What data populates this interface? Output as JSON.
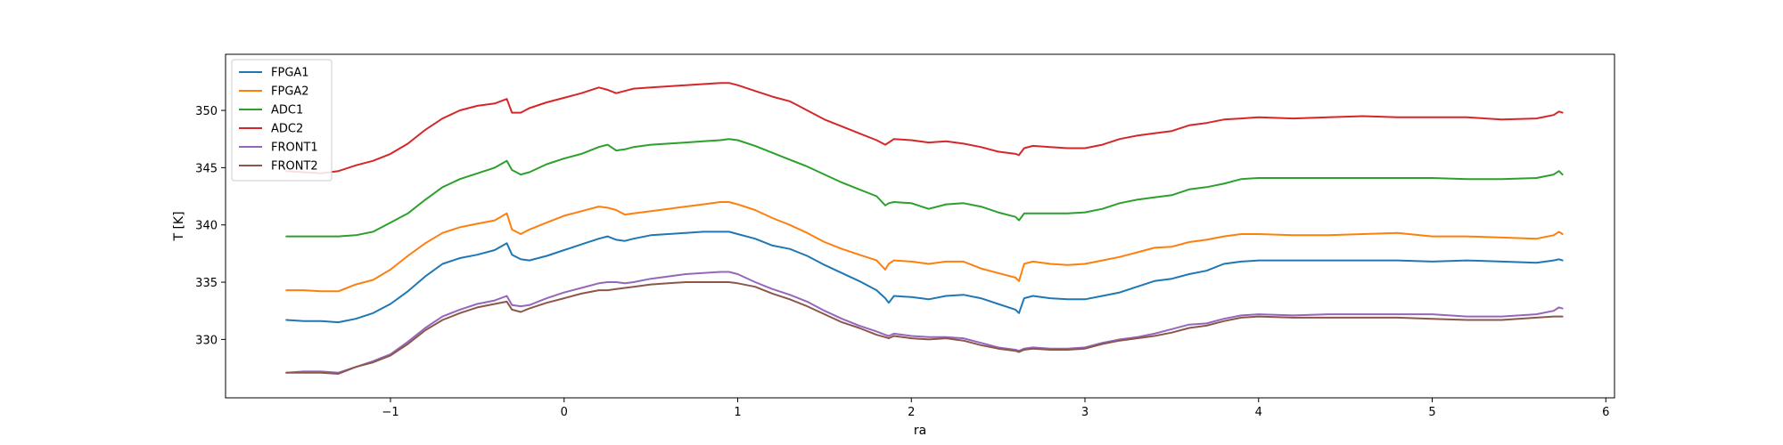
{
  "chart_data": {
    "type": "line",
    "title": "",
    "xlabel": "ra",
    "ylabel": "T [K]",
    "xlim": [
      -1.95,
      6.05
    ],
    "ylim": [
      324.9,
      354.9
    ],
    "xticks": [
      -1,
      0,
      1,
      2,
      3,
      4,
      5,
      6
    ],
    "xtick_labels": [
      "−1",
      "0",
      "1",
      "2",
      "3",
      "4",
      "5",
      "6"
    ],
    "yticks": [
      330,
      335,
      340,
      345,
      350
    ],
    "ytick_labels": [
      "330",
      "335",
      "340",
      "345",
      "350"
    ],
    "grid": false,
    "legend": {
      "placement": "top-left"
    },
    "x": [
      -1.6,
      -1.5,
      -1.4,
      -1.3,
      -1.2,
      -1.1,
      -1.0,
      -0.9,
      -0.8,
      -0.7,
      -0.6,
      -0.5,
      -0.4,
      -0.33,
      -0.3,
      -0.25,
      -0.2,
      -0.1,
      0.0,
      0.1,
      0.2,
      0.25,
      0.3,
      0.35,
      0.4,
      0.5,
      0.6,
      0.7,
      0.8,
      0.9,
      0.95,
      1.0,
      1.1,
      1.2,
      1.3,
      1.4,
      1.5,
      1.6,
      1.7,
      1.8,
      1.85,
      1.87,
      1.9,
      2.0,
      2.1,
      2.2,
      2.3,
      2.4,
      2.5,
      2.6,
      2.62,
      2.65,
      2.7,
      2.8,
      2.9,
      3.0,
      3.1,
      3.2,
      3.3,
      3.4,
      3.5,
      3.6,
      3.7,
      3.8,
      3.9,
      4.0,
      4.2,
      4.4,
      4.6,
      4.8,
      5.0,
      5.2,
      5.4,
      5.6,
      5.7,
      5.73,
      5.75
    ],
    "series": [
      {
        "name": "FPGA1",
        "color": "#1f77b4",
        "values": [
          331.7,
          331.6,
          331.6,
          331.5,
          331.8,
          332.3,
          333.1,
          334.2,
          335.5,
          336.6,
          337.1,
          337.4,
          337.8,
          338.4,
          337.4,
          337.0,
          336.9,
          337.3,
          337.8,
          338.3,
          338.8,
          339.0,
          338.7,
          338.6,
          338.8,
          339.1,
          339.2,
          339.3,
          339.4,
          339.4,
          339.4,
          339.2,
          338.8,
          338.2,
          337.9,
          337.3,
          336.5,
          335.8,
          335.1,
          334.3,
          333.6,
          333.2,
          333.8,
          333.7,
          333.5,
          333.8,
          333.9,
          333.6,
          333.1,
          332.6,
          332.3,
          333.6,
          333.8,
          333.6,
          333.5,
          333.5,
          333.8,
          334.1,
          334.6,
          335.1,
          335.3,
          335.7,
          336.0,
          336.6,
          336.8,
          336.9,
          336.9,
          336.9,
          336.9,
          336.9,
          336.8,
          336.9,
          336.8,
          336.7,
          336.9,
          337.0,
          336.9
        ]
      },
      {
        "name": "FPGA2",
        "color": "#ff7f0e",
        "values": [
          334.3,
          334.3,
          334.2,
          334.2,
          334.8,
          335.2,
          336.1,
          337.3,
          338.4,
          339.3,
          339.8,
          340.1,
          340.4,
          341.0,
          339.6,
          339.2,
          339.6,
          340.2,
          340.8,
          341.2,
          341.6,
          341.5,
          341.3,
          340.9,
          341.0,
          341.2,
          341.4,
          341.6,
          341.8,
          342.0,
          342.0,
          341.8,
          341.3,
          340.6,
          340.0,
          339.3,
          338.5,
          337.9,
          337.4,
          336.9,
          336.1,
          336.6,
          336.9,
          336.8,
          336.6,
          336.8,
          336.8,
          336.2,
          335.8,
          335.4,
          335.1,
          336.6,
          336.8,
          336.6,
          336.5,
          336.6,
          336.9,
          337.2,
          337.6,
          338.0,
          338.1,
          338.5,
          338.7,
          339.0,
          339.2,
          339.2,
          339.1,
          339.1,
          339.2,
          339.3,
          339.0,
          339.0,
          338.9,
          338.8,
          339.1,
          339.4,
          339.2
        ]
      },
      {
        "name": "ADC1",
        "color": "#2ca02c",
        "values": [
          339.0,
          339.0,
          339.0,
          339.0,
          339.1,
          339.4,
          340.2,
          341.0,
          342.2,
          343.3,
          344.0,
          344.5,
          345.0,
          345.6,
          344.8,
          344.4,
          344.6,
          345.3,
          345.8,
          346.2,
          346.8,
          347.0,
          346.5,
          346.6,
          346.8,
          347.0,
          347.1,
          347.2,
          347.3,
          347.4,
          347.5,
          347.4,
          346.9,
          346.3,
          345.7,
          345.1,
          344.4,
          343.7,
          343.1,
          342.5,
          341.7,
          341.9,
          342.0,
          341.9,
          341.4,
          341.8,
          341.9,
          341.6,
          341.1,
          340.7,
          340.4,
          341.0,
          341.0,
          341.0,
          341.0,
          341.1,
          341.4,
          341.9,
          342.2,
          342.4,
          342.6,
          343.1,
          343.3,
          343.6,
          344.0,
          344.1,
          344.1,
          344.1,
          344.1,
          344.1,
          344.1,
          344.0,
          344.0,
          344.1,
          344.4,
          344.7,
          344.4
        ]
      },
      {
        "name": "ADC2",
        "color": "#d62728",
        "values": [
          344.7,
          344.6,
          344.5,
          344.7,
          345.2,
          345.6,
          346.2,
          347.1,
          348.3,
          349.3,
          350.0,
          350.4,
          350.6,
          351.0,
          349.8,
          349.8,
          350.2,
          350.7,
          351.1,
          351.5,
          352.0,
          351.8,
          351.5,
          351.7,
          351.9,
          352.0,
          352.1,
          352.2,
          352.3,
          352.4,
          352.4,
          352.2,
          351.7,
          351.2,
          350.8,
          350.0,
          349.2,
          348.6,
          348.0,
          347.4,
          347.0,
          347.2,
          347.5,
          347.4,
          347.2,
          347.3,
          347.1,
          346.8,
          346.4,
          346.2,
          346.1,
          346.7,
          346.9,
          346.8,
          346.7,
          346.7,
          347.0,
          347.5,
          347.8,
          348.0,
          348.2,
          348.7,
          348.9,
          349.2,
          349.3,
          349.4,
          349.3,
          349.4,
          349.5,
          349.4,
          349.4,
          349.4,
          349.2,
          349.3,
          349.6,
          349.9,
          349.8
        ]
      },
      {
        "name": "FRONT1",
        "color": "#9467bd",
        "values": [
          327.1,
          327.2,
          327.2,
          327.1,
          327.6,
          328.1,
          328.7,
          329.8,
          331.0,
          332.0,
          332.6,
          333.1,
          333.4,
          333.8,
          333.0,
          332.9,
          333.0,
          333.6,
          334.1,
          334.5,
          334.9,
          335.0,
          335.0,
          334.9,
          335.0,
          335.3,
          335.5,
          335.7,
          335.8,
          335.9,
          335.9,
          335.7,
          335.0,
          334.4,
          333.9,
          333.3,
          332.5,
          331.8,
          331.2,
          330.7,
          330.4,
          330.3,
          330.5,
          330.3,
          330.2,
          330.2,
          330.1,
          329.7,
          329.3,
          329.1,
          329.0,
          329.2,
          329.3,
          329.2,
          329.2,
          329.3,
          329.7,
          330.0,
          330.2,
          330.5,
          330.9,
          331.3,
          331.4,
          331.8,
          332.1,
          332.2,
          332.1,
          332.2,
          332.2,
          332.2,
          332.2,
          332.0,
          332.0,
          332.2,
          332.5,
          332.8,
          332.7
        ]
      },
      {
        "name": "FRONT2",
        "color": "#8c564b",
        "values": [
          327.1,
          327.1,
          327.1,
          327.0,
          327.6,
          328.0,
          328.6,
          329.6,
          330.8,
          331.7,
          332.3,
          332.8,
          333.1,
          333.3,
          332.6,
          332.4,
          332.7,
          333.2,
          333.6,
          334.0,
          334.3,
          334.3,
          334.4,
          334.5,
          334.6,
          334.8,
          334.9,
          335.0,
          335.0,
          335.0,
          335.0,
          334.9,
          334.6,
          334.0,
          333.5,
          332.9,
          332.2,
          331.5,
          331.0,
          330.4,
          330.2,
          330.1,
          330.3,
          330.1,
          330.0,
          330.1,
          329.9,
          329.5,
          329.2,
          329.0,
          328.9,
          329.1,
          329.2,
          329.1,
          329.1,
          329.2,
          329.6,
          329.9,
          330.1,
          330.3,
          330.6,
          331.0,
          331.2,
          331.6,
          331.9,
          332.0,
          331.9,
          331.9,
          331.9,
          331.9,
          331.8,
          331.7,
          331.7,
          331.9,
          332.0,
          332.0,
          332.0
        ]
      }
    ]
  }
}
